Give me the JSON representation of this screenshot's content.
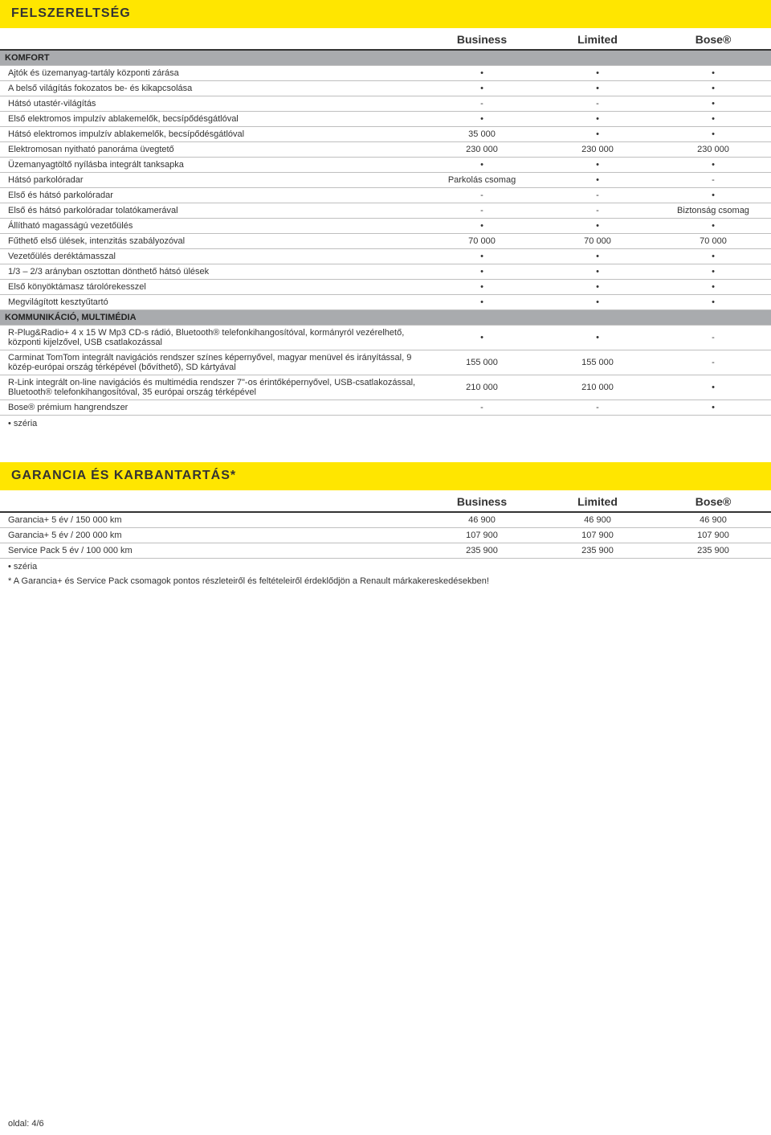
{
  "colors": {
    "accent": "#ffe600",
    "section_row": "#a9abae",
    "border": "#bfbfbf",
    "header_border": "#333333",
    "text": "#333333",
    "background": "#ffffff"
  },
  "table1": {
    "title": "FELSZERELTSÉG",
    "columns": [
      "",
      "Business",
      "Limited",
      "Bose®"
    ],
    "sections": [
      {
        "name": "KOMFORT",
        "rows": [
          {
            "label": "Ajtók és üzemanyag-tartály központi zárása",
            "vals": [
              "•",
              "•",
              "•"
            ]
          },
          {
            "label": "A belső világítás fokozatos be- és kikapcsolása",
            "vals": [
              "•",
              "•",
              "•"
            ]
          },
          {
            "label": "Hátsó utastér-világítás",
            "vals": [
              "-",
              "-",
              "•"
            ]
          },
          {
            "label": "Első elektromos impulzív ablakemelők, becsípődésgátlóval",
            "vals": [
              "•",
              "•",
              "•"
            ]
          },
          {
            "label": "Hátsó elektromos impulzív ablakemelők, becsípődésgátlóval",
            "vals": [
              "35 000",
              "•",
              "•"
            ]
          },
          {
            "label": "Elektromosan nyitható panoráma üvegtető",
            "vals": [
              "230 000",
              "230 000",
              "230 000"
            ]
          },
          {
            "label": "Üzemanyagtöltő nyílásba integrált tanksapka",
            "vals": [
              "•",
              "•",
              "•"
            ]
          },
          {
            "label": "Hátsó parkolóradar",
            "vals": [
              "Parkolás csomag",
              "•",
              "-"
            ]
          },
          {
            "label": "Első és hátsó parkolóradar",
            "vals": [
              "-",
              "-",
              "•"
            ]
          },
          {
            "label": "Első és hátsó parkolóradar tolatókamerával",
            "vals": [
              "-",
              "-",
              "Biztonság csomag"
            ]
          },
          {
            "label": "Állítható magasságú vezetőülés",
            "vals": [
              "•",
              "•",
              "•"
            ]
          },
          {
            "label": "Fűthető első ülések, intenzitás szabályozóval",
            "vals": [
              "70 000",
              "70 000",
              "70 000"
            ]
          },
          {
            "label": "Vezetőülés deréktámasszal",
            "vals": [
              "•",
              "•",
              "•"
            ]
          },
          {
            "label": "1/3 – 2/3 arányban osztottan dönthető hátsó ülések",
            "vals": [
              "•",
              "•",
              "•"
            ]
          },
          {
            "label": "Első könyöktámasz tárolórekesszel",
            "vals": [
              "•",
              "•",
              "•"
            ]
          },
          {
            "label": "Megvilágított kesztyűtartó",
            "vals": [
              "•",
              "•",
              "•"
            ]
          }
        ]
      },
      {
        "name": "KOMMUNIKÁCIÓ, MULTIMÉDIA",
        "rows": [
          {
            "label": "R-Plug&Radio+ 4 x 15 W Mp3 CD-s rádió, Bluetooth® telefonkihangosítóval, kormányról vezérelhető, központi kijelzővel, USB csatlakozással",
            "vals": [
              "•",
              "•",
              "-"
            ]
          },
          {
            "label": "Carminat TomTom integrált navigációs rendszer színes képernyővel, magyar menüvel és irányítással, 9 közép-európai ország térképével (bővíthető), SD kártyával",
            "vals": [
              "155 000",
              "155 000",
              "-"
            ]
          },
          {
            "label": "R-Link integrált on-line navigációs és multimédia rendszer 7\"-os érintőképernyővel, USB-csatlakozással, Bluetooth® telefonkihangosítóval, 35 európai ország térképével",
            "vals": [
              "210 000",
              "210 000",
              "•"
            ]
          },
          {
            "label": "Bose® prémium hangrendszer",
            "vals": [
              "-",
              "-",
              "•"
            ]
          }
        ]
      }
    ],
    "note": "•  széria"
  },
  "table2": {
    "title": "GARANCIA ÉS KARBANTARTÁS*",
    "columns": [
      "",
      "Business",
      "Limited",
      "Bose®"
    ],
    "rows": [
      {
        "label": "Garancia+ 5 év / 150 000 km",
        "vals": [
          "46 900",
          "46 900",
          "46 900"
        ]
      },
      {
        "label": "Garancia+ 5 év / 200 000 km",
        "vals": [
          "107 900",
          "107 900",
          "107 900"
        ]
      },
      {
        "label": "Service Pack 5 év / 100 000 km",
        "vals": [
          "235 900",
          "235 900",
          "235 900"
        ]
      }
    ],
    "notes": [
      "•  széria",
      "*  A Garancia+ és Service Pack csomagok pontos részleteiről és feltételeiről érdeklődjön a Renault márkakereskedésekben!"
    ]
  },
  "footer": "oldal: 4/6"
}
